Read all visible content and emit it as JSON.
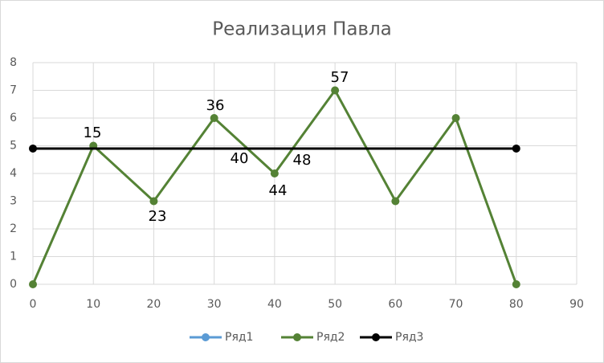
{
  "chart_data": {
    "type": "scatter",
    "title": "Реализация Павла",
    "series": [
      {
        "name": "Ряд1",
        "color": "#5b9bd5",
        "x": [],
        "values": []
      },
      {
        "name": "Ряд2",
        "color": "#548235",
        "x": [
          0,
          10,
          20,
          30,
          40,
          50,
          60,
          70,
          80
        ],
        "values": [
          0,
          5,
          3,
          6,
          4,
          7,
          3,
          6,
          0
        ]
      },
      {
        "name": "Ряд3",
        "color": "#000000",
        "x": [
          0,
          80
        ],
        "values": [
          4.9,
          4.9
        ]
      }
    ],
    "annotations": [
      "15",
      "23",
      "36",
      "40",
      "44",
      "48",
      "57"
    ],
    "xlim": [
      0,
      90
    ],
    "xticks": [
      0,
      10,
      20,
      30,
      40,
      50,
      60,
      70,
      80,
      90
    ],
    "ylim": [
      0,
      8
    ],
    "yticks": [
      0,
      1,
      2,
      3,
      4,
      5,
      6,
      7,
      8
    ],
    "grid": true,
    "legend": "bottom"
  }
}
